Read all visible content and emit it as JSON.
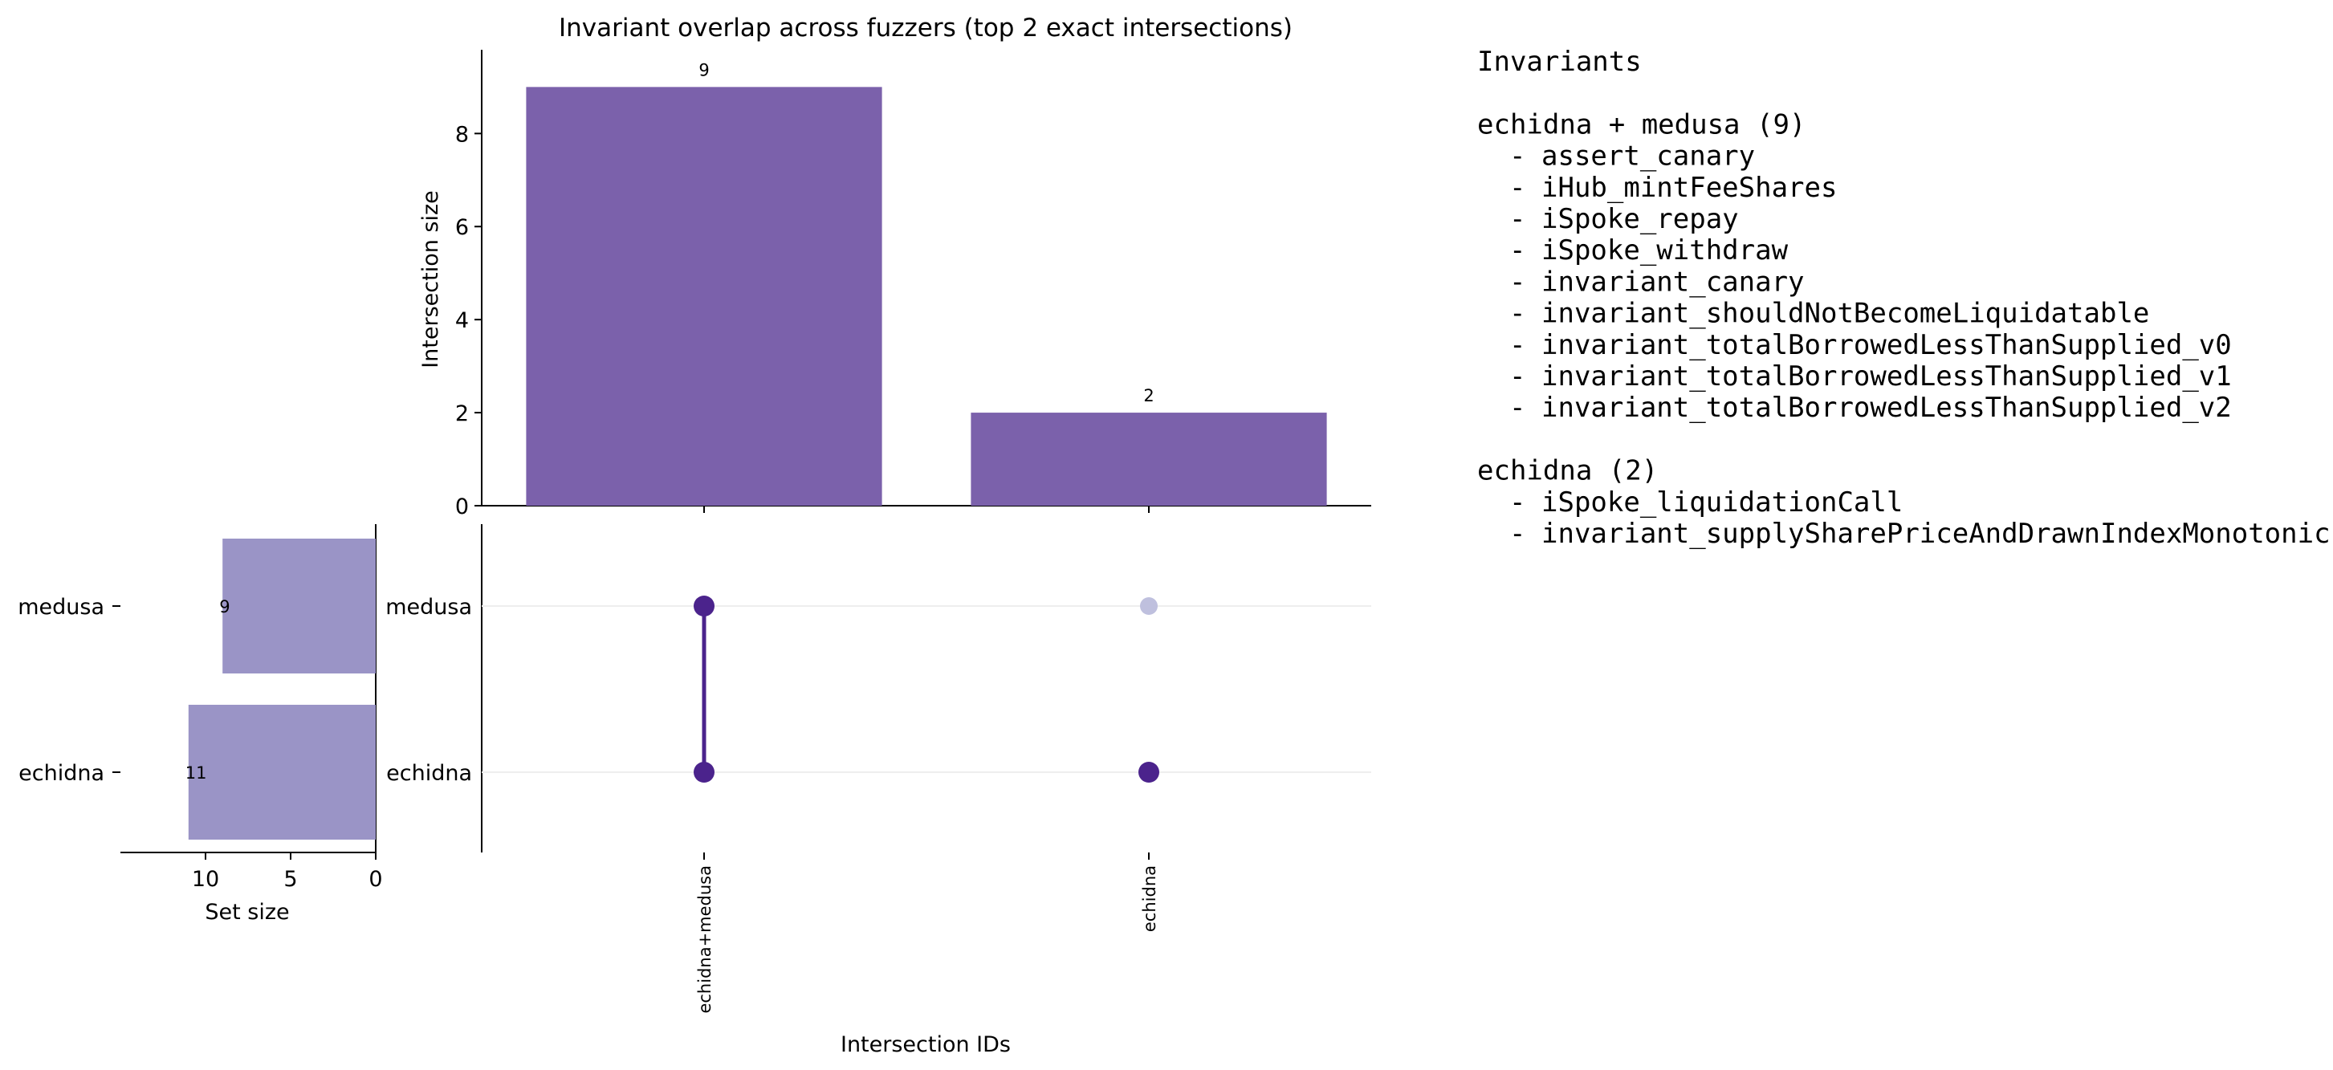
{
  "chart_data": {
    "type": "bar",
    "title": "Invariant overlap across fuzzers (top 2 exact intersections)",
    "xlabel": "Intersection IDs",
    "ylabel": "Intersection size",
    "ylim": [
      0,
      9.8
    ],
    "yticks": [
      0,
      2,
      4,
      6,
      8
    ],
    "categories": [
      "echidna+medusa",
      "echidna"
    ],
    "values": [
      9,
      2
    ],
    "bar_color": "#7B61AB",
    "sets": {
      "names": [
        "medusa",
        "echidna"
      ],
      "sizes": [
        9,
        11
      ],
      "xlabel": "Set size",
      "xlim": [
        0,
        15
      ],
      "xticks": [
        10,
        5,
        0
      ],
      "bar_color": "#9A94C6"
    },
    "matrix": {
      "membership": [
        [
          true,
          true
        ],
        [
          false,
          true
        ]
      ],
      "active_color": "#4B238C",
      "inactive_color": "#BFC0DE"
    },
    "grid": false,
    "legend": "none"
  },
  "panel": {
    "heading": "Invariants",
    "groups": [
      {
        "title": "echidna + medusa (9)",
        "items": [
          "assert_canary",
          "iHub_mintFeeShares",
          "iSpoke_repay",
          "iSpoke_withdraw",
          "invariant_canary",
          "invariant_shouldNotBecomeLiquidatable",
          "invariant_totalBorrowedLessThanSupplied_v0",
          "invariant_totalBorrowedLessThanSupplied_v1",
          "invariant_totalBorrowedLessThanSupplied_v2"
        ]
      },
      {
        "title": "echidna (2)",
        "items": [
          "iSpoke_liquidationCall",
          "invariant_supplySharePriceAndDrawnIndexMonotonic"
        ]
      }
    ]
  }
}
